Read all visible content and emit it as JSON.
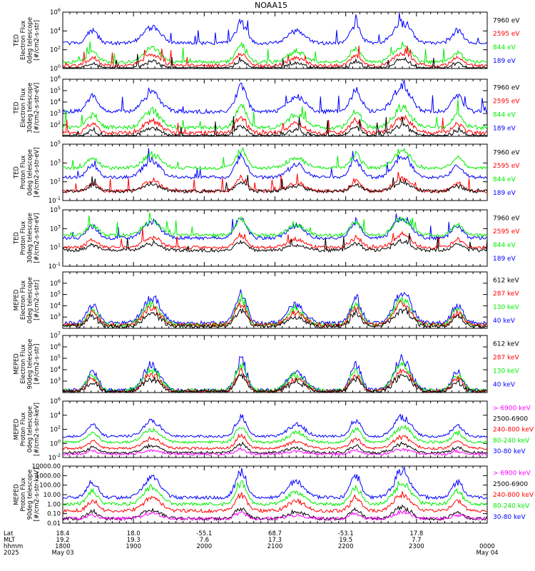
{
  "title": "NOAA15",
  "colors": {
    "black": "#000000",
    "red": "#ff0000",
    "green": "#00ee00",
    "blue": "#0000ff",
    "magenta": "#ff00ff"
  },
  "chart_data": [
    {
      "type": "line",
      "ylog": true,
      "ylim": [
        1,
        1000000
      ],
      "ylabel": [
        "TED",
        "Electron Flux",
        "0deg telescope",
        "[#/cm2-s-str]"
      ],
      "yticks": [
        {
          "v": 1,
          "t": "10^0"
        },
        {
          "v": 100,
          "t": "10^2"
        },
        {
          "v": 10000,
          "t": "10^4"
        },
        {
          "v": 1000000,
          "t": "10^6"
        }
      ],
      "legend": [
        {
          "label": "7960 eV",
          "color": "black"
        },
        {
          "label": "2595 eV",
          "color": "red"
        },
        {
          "label": "844 eV",
          "color": "green"
        },
        {
          "label": "189 eV",
          "color": "blue"
        }
      ],
      "series": [
        {
          "name": "189 eV",
          "color": "blue",
          "base": 500,
          "spikes": [
            [
              0.27,
              20
            ],
            [
              0.5,
              30
            ],
            [
              0.95,
              10
            ]
          ]
        },
        {
          "name": "844 eV",
          "color": "green",
          "base": 5
        },
        {
          "name": "2595 eV",
          "color": "red",
          "base": 2
        },
        {
          "name": "7960 eV",
          "color": "black",
          "base": 1
        }
      ]
    },
    {
      "type": "line",
      "ylog": true,
      "ylim": [
        10,
        1000000
      ],
      "ylabel": [
        "TED",
        "Electron Flux",
        "30deg telescope",
        "[#/cm2-s-str-eV]"
      ],
      "yticks": [
        {
          "v": 100,
          "t": "10^2"
        },
        {
          "v": 1000,
          "t": "10^3"
        },
        {
          "v": 10000,
          "t": "10^4"
        },
        {
          "v": 100000,
          "t": "10^5"
        },
        {
          "v": 1000000,
          "t": "10^6"
        }
      ],
      "legend": [
        {
          "label": "7960 eV",
          "color": "black"
        },
        {
          "label": "2595 eV",
          "color": "red"
        },
        {
          "label": "844 eV",
          "color": "green"
        },
        {
          "label": "189 eV",
          "color": "blue"
        }
      ],
      "series": [
        {
          "name": "189 eV",
          "color": "blue",
          "base": 1500
        },
        {
          "name": "844 eV",
          "color": "green",
          "base": 60
        },
        {
          "name": "2595 eV",
          "color": "red",
          "base": 20
        },
        {
          "name": "7960 eV",
          "color": "black",
          "base": 10
        }
      ]
    },
    {
      "type": "line",
      "ylog": true,
      "ylim": [
        0.1,
        100000
      ],
      "ylabel": [
        "TED",
        "Proton Flux",
        "0deg telescope",
        "[#/cm2-s-str-eV]"
      ],
      "yticks": [
        {
          "v": 0.1,
          "t": "10^-1"
        },
        {
          "v": 10,
          "t": "10^1"
        },
        {
          "v": 1000,
          "t": "10^3"
        },
        {
          "v": 100000,
          "t": "10^5"
        }
      ],
      "legend": [
        {
          "label": "7960 eV",
          "color": "black"
        },
        {
          "label": "2595 eV",
          "color": "red"
        },
        {
          "label": "844 eV",
          "color": "green"
        },
        {
          "label": "189 eV",
          "color": "blue"
        }
      ],
      "series": [
        {
          "name": "189 eV",
          "color": "blue",
          "base": 30
        },
        {
          "name": "844 eV",
          "color": "green",
          "base": 300
        },
        {
          "name": "2595 eV",
          "color": "red",
          "base": 1
        },
        {
          "name": "7960 eV",
          "color": "black",
          "base": 1
        }
      ]
    },
    {
      "type": "line",
      "ylog": true,
      "ylim": [
        0.1,
        100000
      ],
      "ylabel": [
        "TED",
        "Proton Flux",
        "30deg telescope",
        "[#/cm2-s-str-eV]"
      ],
      "yticks": [
        {
          "v": 0.1,
          "t": "10^-1"
        },
        {
          "v": 10,
          "t": "10^1"
        },
        {
          "v": 1000,
          "t": "10^3"
        },
        {
          "v": 100000,
          "t": "10^5"
        }
      ],
      "legend": [
        {
          "label": "7960 eV",
          "color": "black"
        },
        {
          "label": "2595 eV",
          "color": "red"
        },
        {
          "label": "844 eV",
          "color": "green"
        },
        {
          "label": "189 eV",
          "color": "blue"
        }
      ],
      "series": [
        {
          "name": "189 eV",
          "color": "blue",
          "base": 100
        },
        {
          "name": "844 eV",
          "color": "green",
          "base": 200
        },
        {
          "name": "2595 eV",
          "color": "red",
          "base": 10
        },
        {
          "name": "7960 eV",
          "color": "black",
          "base": 5
        }
      ]
    },
    {
      "type": "line",
      "ylog": true,
      "ylim": [
        100,
        10000000
      ],
      "ylabel": [
        "MEPED",
        "Electron Flux",
        "0deg telescope",
        "[#/cm2-s-str]"
      ],
      "yticks": [
        {
          "v": 1000,
          "t": "10^3"
        },
        {
          "v": 10000,
          "t": "10^4"
        },
        {
          "v": 100000,
          "t": "10^5"
        },
        {
          "v": 1000000,
          "t": "10^6"
        }
      ],
      "legend": [
        {
          "label": "612 keV",
          "color": "black"
        },
        {
          "label": "287 keV",
          "color": "red"
        },
        {
          "label": "130 keV",
          "color": "green"
        },
        {
          "label": "40 keV",
          "color": "blue"
        }
      ],
      "series": [
        {
          "name": "40 keV",
          "color": "blue",
          "base": 300
        },
        {
          "name": "130 keV",
          "color": "green",
          "base": 200
        },
        {
          "name": "287 keV",
          "color": "red",
          "base": 200
        },
        {
          "name": "612 keV",
          "color": "black",
          "base": 150
        }
      ]
    },
    {
      "type": "line",
      "ylog": true,
      "ylim": [
        100,
        10000000
      ],
      "ylabel": [
        "MEPED",
        "Electron Flux",
        "90deg telescope",
        "[#/cm2-s-str]"
      ],
      "yticks": [
        {
          "v": 1000,
          "t": "10^3"
        },
        {
          "v": 10000,
          "t": "10^4"
        },
        {
          "v": 100000,
          "t": "10^5"
        },
        {
          "v": 1000000,
          "t": "10^6"
        },
        {
          "v": 10000000,
          "t": "10^7"
        }
      ],
      "legend": [
        {
          "label": "612 keV",
          "color": "black"
        },
        {
          "label": "287 keV",
          "color": "red"
        },
        {
          "label": "130 keV",
          "color": "green"
        },
        {
          "label": "40 keV",
          "color": "blue"
        }
      ],
      "series": [
        {
          "name": "40 keV",
          "color": "blue",
          "base": 150
        },
        {
          "name": "130 keV",
          "color": "green",
          "base": 150
        },
        {
          "name": "287 keV",
          "color": "red",
          "base": 120
        },
        {
          "name": "612 keV",
          "color": "black",
          "base": 120
        }
      ]
    },
    {
      "type": "line",
      "ylog": true,
      "ylim": [
        0.01,
        1000000
      ],
      "ylabel": [
        "MEPED",
        "Proton Flux",
        "0deg telescope",
        "[#/cm2-s-str-keV]"
      ],
      "yticks": [
        {
          "v": 0.01,
          "t": "10^-2"
        },
        {
          "v": 1,
          "t": "10^0"
        },
        {
          "v": 100,
          "t": "10^2"
        },
        {
          "v": 10000,
          "t": "10^4"
        },
        {
          "v": 1000000,
          "t": "10^6"
        }
      ],
      "legend": [
        {
          "label": "> 6900 keV",
          "color": "magenta"
        },
        {
          "label": "2500-6900",
          "color": "black"
        },
        {
          "label": "240-800 keV",
          "color": "red"
        },
        {
          "label": "80-240 keV",
          "color": "green"
        },
        {
          "label": "30-80 keV",
          "color": "blue"
        }
      ],
      "series": [
        {
          "name": "30-80 keV",
          "color": "blue",
          "base": 10
        },
        {
          "name": "80-240 keV",
          "color": "green",
          "base": 1.5
        },
        {
          "name": "240-800 keV",
          "color": "red",
          "base": 0.2
        },
        {
          "name": "2500-6900",
          "color": "black",
          "base": 0.05
        },
        {
          "name": "> 6900 keV",
          "color": "magenta",
          "base": 0.03
        }
      ]
    },
    {
      "type": "line",
      "ylog": true,
      "ylim": [
        0.01,
        10000
      ],
      "ylabel": [
        "MEPED",
        "Proton Flux",
        "90deg telescope",
        "[#/cm2-s-str-keV]"
      ],
      "yticks": [
        {
          "v": 0.01,
          "t": "0.01"
        },
        {
          "v": 0.1,
          "t": "0.10"
        },
        {
          "v": 1,
          "t": "1.00"
        },
        {
          "v": 10,
          "t": "10.00"
        },
        {
          "v": 100,
          "t": "100.00"
        },
        {
          "v": 1000,
          "t": "1000.00"
        },
        {
          "v": 10000,
          "t": "10000.00"
        }
      ],
      "legend": [
        {
          "label": "> 6900 keV",
          "color": "magenta"
        },
        {
          "label": "2500-6900",
          "color": "black"
        },
        {
          "label": "240-800 keV",
          "color": "red"
        },
        {
          "label": "80-240 keV",
          "color": "green"
        },
        {
          "label": "30-80 keV",
          "color": "blue"
        }
      ],
      "series": [
        {
          "name": "30-80 keV",
          "color": "blue",
          "base": 5
        },
        {
          "name": "80-240 keV",
          "color": "green",
          "base": 1
        },
        {
          "name": "240-800 keV",
          "color": "red",
          "base": 0.2
        },
        {
          "name": "2500-6900",
          "color": "black",
          "base": 0.03
        },
        {
          "name": "> 6900 keV",
          "color": "magenta",
          "base": 0.03
        }
      ]
    }
  ],
  "x_axis": {
    "row_labels": [
      "Lat",
      "MLT",
      "hhmm",
      "2025"
    ],
    "columns": [
      {
        "lat": "18.4",
        "mlt": "19.2",
        "hhmm": "1800",
        "date": "May 03"
      },
      {
        "lat": "18.0",
        "mlt": "19.3",
        "hhmm": "1900",
        "date": ""
      },
      {
        "lat": "-55.1",
        "mlt": "7.6",
        "hhmm": "2000",
        "date": ""
      },
      {
        "lat": "68.7",
        "mlt": "17.3",
        "hhmm": "2100",
        "date": ""
      },
      {
        "lat": "-53.1",
        "mlt": "19.5",
        "hhmm": "2200",
        "date": ""
      },
      {
        "lat": "17.8",
        "mlt": "7.7",
        "hhmm": "2300",
        "date": ""
      },
      {
        "lat": "",
        "mlt": "",
        "hhmm": "0000",
        "date": "May 04"
      }
    ]
  }
}
